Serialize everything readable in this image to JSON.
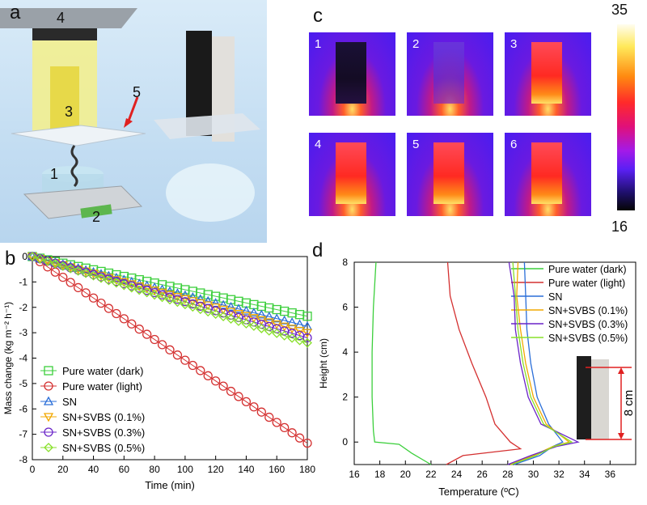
{
  "panels": {
    "a": {
      "letter": "a",
      "labels": [
        "1",
        "2",
        "3",
        "4",
        "5"
      ]
    },
    "b": {
      "letter": "b"
    },
    "c": {
      "letter": "c",
      "tiles": [
        "1",
        "2",
        "3",
        "4",
        "5",
        "6"
      ],
      "colorbar_max": "35",
      "colorbar_min": "16"
    },
    "d": {
      "letter": "d",
      "scale_label": "8 cm"
    }
  },
  "colors": {
    "pure_dark": "#3ccf3c",
    "pure_light": "#d43030",
    "sn": "#2a6ed8",
    "svbs_01": "#f2a800",
    "svbs_03": "#6a24c8",
    "svbs_05": "#88e02a"
  },
  "chart_data": [
    {
      "type": "line",
      "xlabel": "Time (min)",
      "ylabel": "Mass change (kg m⁻² h⁻¹)",
      "xlim": [
        0,
        180
      ],
      "ylim": [
        -8,
        0
      ],
      "xticks": [
        "0",
        "20",
        "40",
        "60",
        "80",
        "100",
        "120",
        "140",
        "160",
        "180"
      ],
      "yticks": [
        "0",
        "-1",
        "-2",
        "-3",
        "-4",
        "-5",
        "-6",
        "-7",
        "-8"
      ],
      "legend_position": "bottom-left",
      "series": [
        {
          "name": "Pure water (dark)",
          "marker": "square",
          "x": [
            0,
            180
          ],
          "y": [
            0,
            -2.35
          ]
        },
        {
          "name": "Pure water (light)",
          "marker": "circle",
          "x": [
            0,
            180
          ],
          "y": [
            0,
            -7.35
          ]
        },
        {
          "name": "SN",
          "marker": "triangle-up",
          "x": [
            0,
            180
          ],
          "y": [
            0,
            -2.75
          ]
        },
        {
          "name": "SN+SVBS (0.1%)",
          "marker": "triangle-down",
          "x": [
            0,
            180
          ],
          "y": [
            0,
            -3.0
          ]
        },
        {
          "name": "SN+SVBS (0.3%)",
          "marker": "circle",
          "x": [
            0,
            180
          ],
          "y": [
            0,
            -3.2
          ]
        },
        {
          "name": "SN+SVBS (0.5%)",
          "marker": "diamond",
          "x": [
            0,
            180
          ],
          "y": [
            0,
            -3.4
          ]
        }
      ]
    },
    {
      "type": "line",
      "xlabel": "Temperature (ºC)",
      "ylabel": "Height (cm)",
      "xlim": [
        16,
        38
      ],
      "ylim": [
        -1,
        8
      ],
      "xticks": [
        "16",
        "18",
        "20",
        "22",
        "24",
        "26",
        "28",
        "30",
        "32",
        "34",
        "36"
      ],
      "yticks": [
        "8",
        "6",
        "4",
        "2",
        "0"
      ],
      "legend_position": "top-right",
      "series": [
        {
          "name": "Pure water (dark)",
          "points": [
            [
              17.7,
              8
            ],
            [
              17.5,
              6
            ],
            [
              17.4,
              4
            ],
            [
              17.4,
              2
            ],
            [
              17.5,
              0.5
            ],
            [
              17.6,
              0
            ],
            [
              19.5,
              -0.1
            ],
            [
              20.5,
              -0.5
            ],
            [
              22,
              -1
            ]
          ]
        },
        {
          "name": "Pure water (light)",
          "points": [
            [
              23.3,
              8
            ],
            [
              23.5,
              6.5
            ],
            [
              24.2,
              5
            ],
            [
              25.2,
              3.5
            ],
            [
              26.3,
              2
            ],
            [
              27.0,
              0.8
            ],
            [
              28.2,
              0
            ],
            [
              29.0,
              -0.3
            ],
            [
              24.5,
              -0.6
            ],
            [
              23.2,
              -1
            ]
          ]
        },
        {
          "name": "SN",
          "points": [
            [
              29.3,
              8
            ],
            [
              29.4,
              6.5
            ],
            [
              29.5,
              5
            ],
            [
              29.8,
              3.5
            ],
            [
              30.3,
              2
            ],
            [
              31.2,
              0.8
            ],
            [
              32.3,
              0
            ],
            [
              31.5,
              -0.2
            ],
            [
              30.5,
              -0.6
            ],
            [
              28.5,
              -1
            ]
          ]
        },
        {
          "name": "SN+SVBS (0.1%)",
          "points": [
            [
              28.8,
              8
            ],
            [
              28.7,
              6.5
            ],
            [
              29.0,
              5
            ],
            [
              29.4,
              3.5
            ],
            [
              30.0,
              2
            ],
            [
              31.0,
              0.8
            ],
            [
              32.8,
              0
            ],
            [
              31.5,
              -0.2
            ],
            [
              30.0,
              -0.6
            ],
            [
              28.2,
              -1
            ]
          ]
        },
        {
          "name": "SN+SVBS (0.3%)",
          "points": [
            [
              28.1,
              8
            ],
            [
              28.5,
              6.5
            ],
            [
              28.6,
              5
            ],
            [
              29.0,
              3.5
            ],
            [
              29.6,
              2
            ],
            [
              30.6,
              0.8
            ],
            [
              33.5,
              0
            ],
            [
              31.8,
              -0.2
            ],
            [
              29.8,
              -0.6
            ],
            [
              28.0,
              -1
            ]
          ]
        },
        {
          "name": "SN+SVBS (0.5%)",
          "points": [
            [
              28.4,
              8
            ],
            [
              28.6,
              6.5
            ],
            [
              28.8,
              5
            ],
            [
              29.2,
              3.5
            ],
            [
              29.8,
              2
            ],
            [
              30.8,
              0.8
            ],
            [
              33.0,
              0
            ],
            [
              31.6,
              -0.2
            ],
            [
              30.2,
              -0.6
            ],
            [
              28.3,
              -1
            ]
          ]
        }
      ]
    }
  ]
}
